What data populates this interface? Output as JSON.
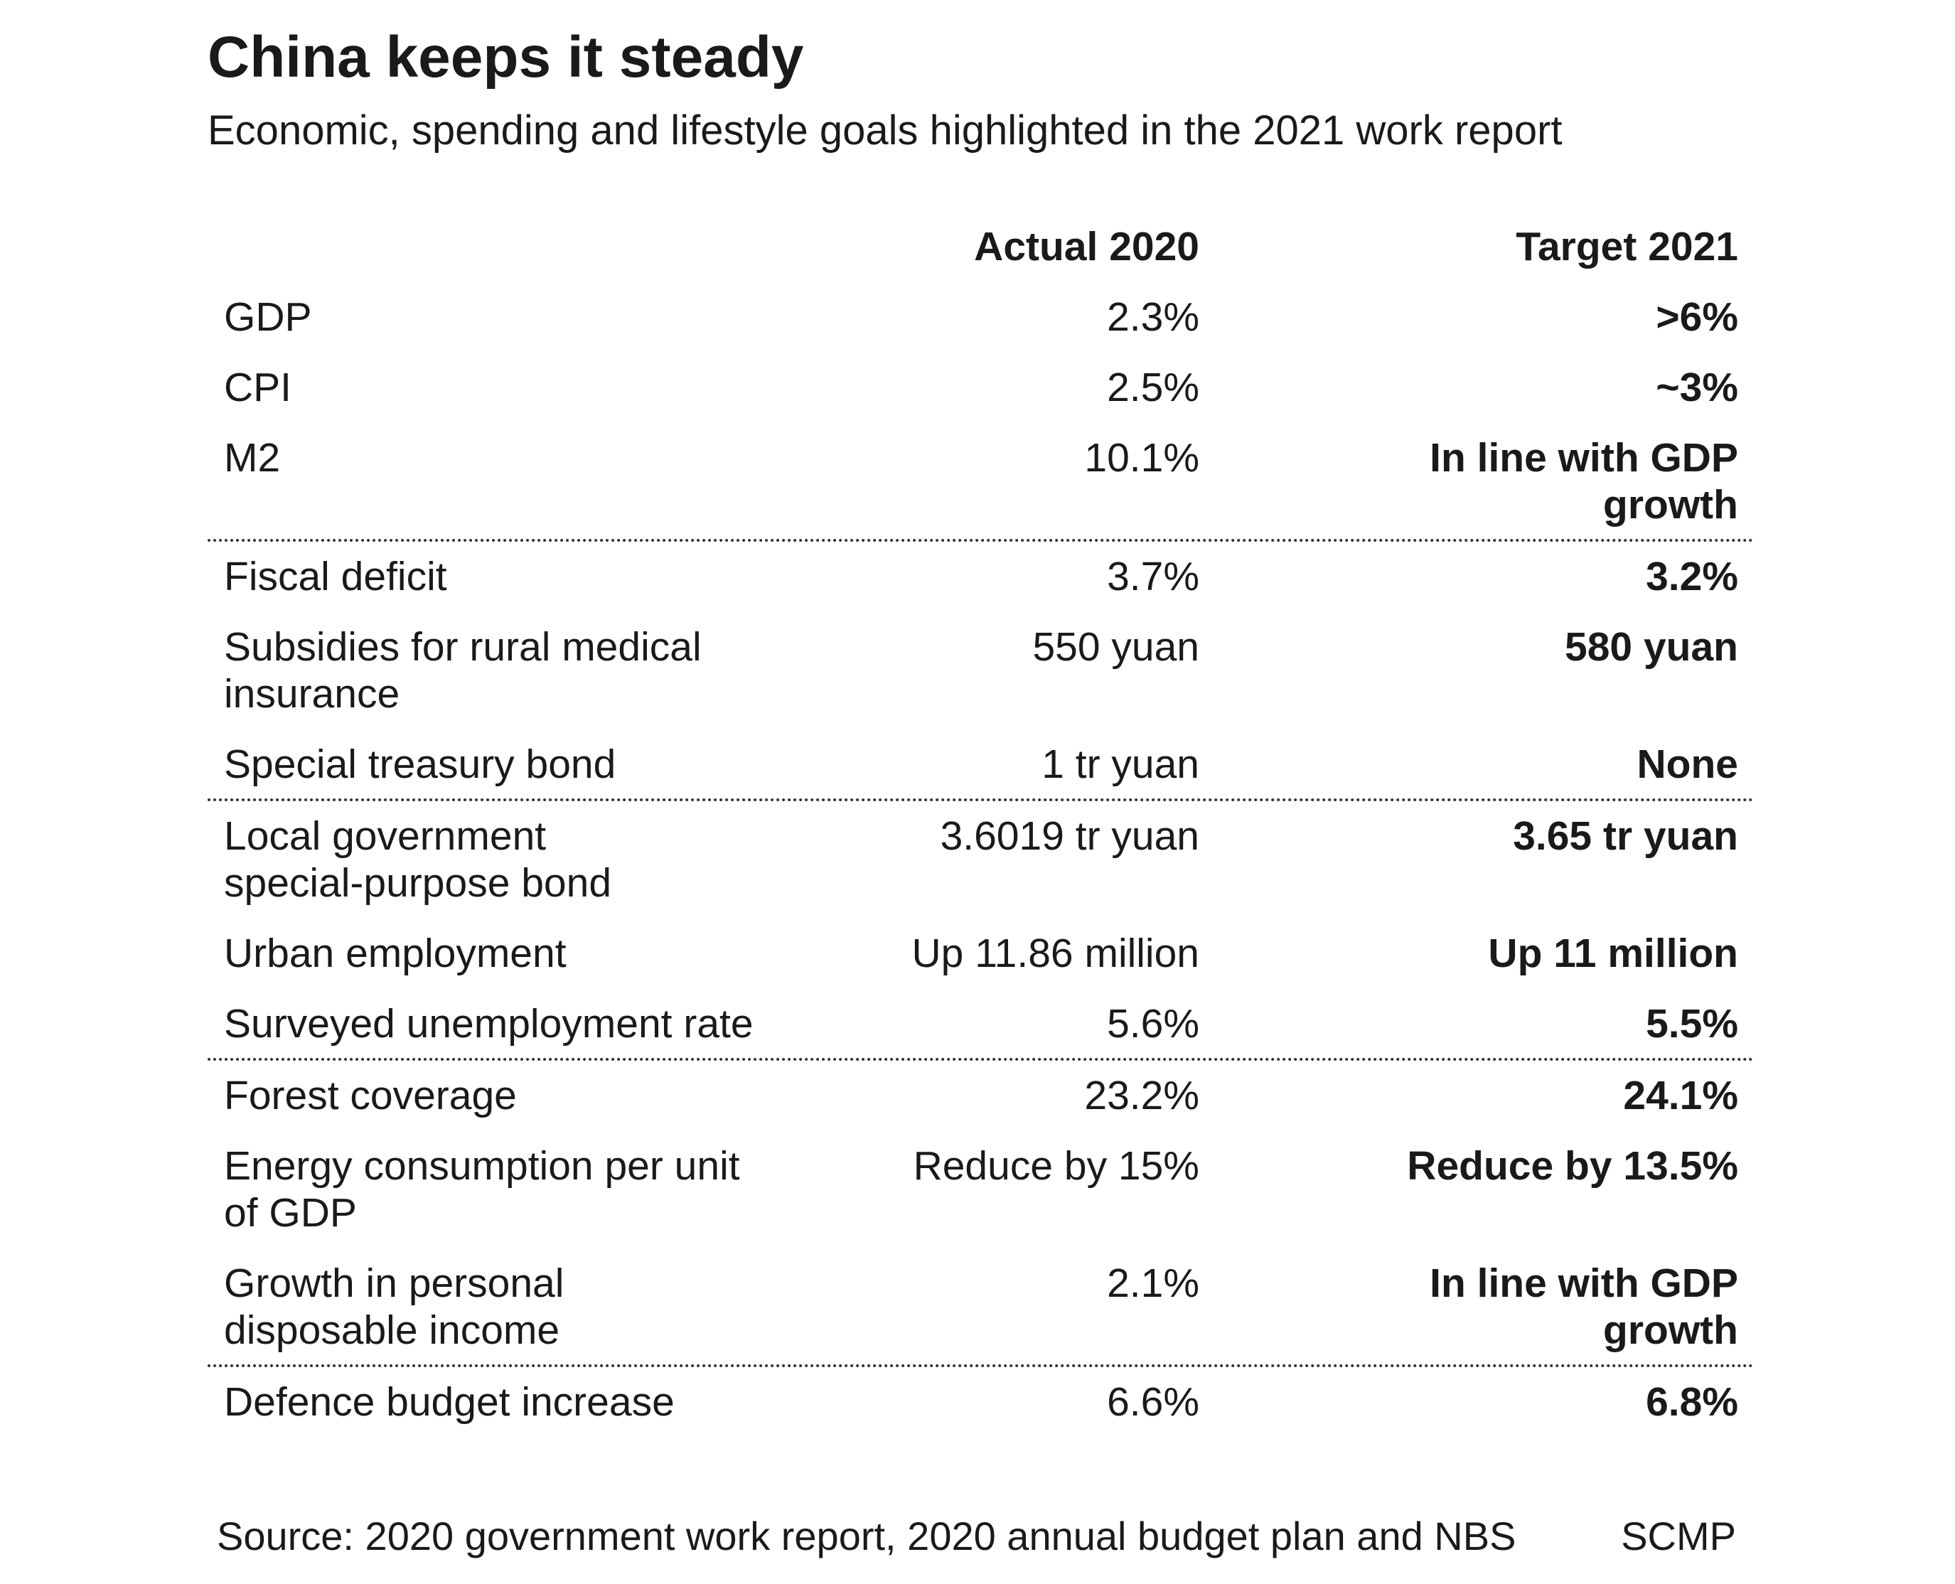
{
  "header": {
    "title": "China keeps it steady",
    "subtitle": "Economic, spending and lifestyle goals highlighted in the 2021 work report"
  },
  "table": {
    "columns": [
      "Actual 2020",
      "Target 2021"
    ],
    "groups": [
      {
        "rows": [
          {
            "label": [
              "GDP"
            ],
            "actual": [
              "2.3%"
            ],
            "target": [
              ">6%"
            ]
          },
          {
            "label": [
              "CPI"
            ],
            "actual": [
              "2.5%"
            ],
            "target": [
              "~3%"
            ]
          },
          {
            "label": [
              "M2"
            ],
            "actual": [
              "10.1%"
            ],
            "target": [
              "In line with GDP",
              "growth"
            ]
          }
        ]
      },
      {
        "rows": [
          {
            "label": [
              "Fiscal deficit"
            ],
            "actual": [
              "3.7%"
            ],
            "target": [
              "3.2%"
            ]
          },
          {
            "label": [
              "Subsidies for rural medical",
              "insurance"
            ],
            "actual": [
              "550 yuan"
            ],
            "target": [
              "580 yuan"
            ]
          },
          {
            "label": [
              "Special treasury bond"
            ],
            "actual": [
              "1 tr yuan"
            ],
            "target": [
              "None"
            ]
          }
        ]
      },
      {
        "rows": [
          {
            "label": [
              "Local government",
              "special-purpose bond"
            ],
            "actual": [
              "3.6019 tr yuan"
            ],
            "target": [
              "3.65 tr yuan"
            ]
          },
          {
            "label": [
              "Urban employment"
            ],
            "actual": [
              "Up 11.86 million"
            ],
            "target": [
              "Up 11 million"
            ]
          },
          {
            "label": [
              "Surveyed unemployment rate"
            ],
            "actual": [
              "5.6%"
            ],
            "target": [
              "5.5%"
            ]
          }
        ]
      },
      {
        "rows": [
          {
            "label": [
              "Forest coverage"
            ],
            "actual": [
              "23.2%"
            ],
            "target": [
              "24.1%"
            ]
          },
          {
            "label": [
              "Energy consumption per unit",
              "of GDP"
            ],
            "actual": [
              "Reduce by 15%"
            ],
            "target": [
              "Reduce by 13.5%"
            ]
          },
          {
            "label": [
              "Growth in personal",
              "disposable income"
            ],
            "actual": [
              "2.1%"
            ],
            "target": [
              "In line with GDP",
              "growth"
            ]
          }
        ]
      },
      {
        "rows": [
          {
            "label": [
              "Defence budget increase"
            ],
            "actual": [
              "6.6%"
            ],
            "target": [
              "6.8%"
            ]
          }
        ]
      }
    ]
  },
  "footer": {
    "source": "Source: 2020 government work report, 2020 annual budget plan and NBS",
    "credit": "SCMP"
  }
}
